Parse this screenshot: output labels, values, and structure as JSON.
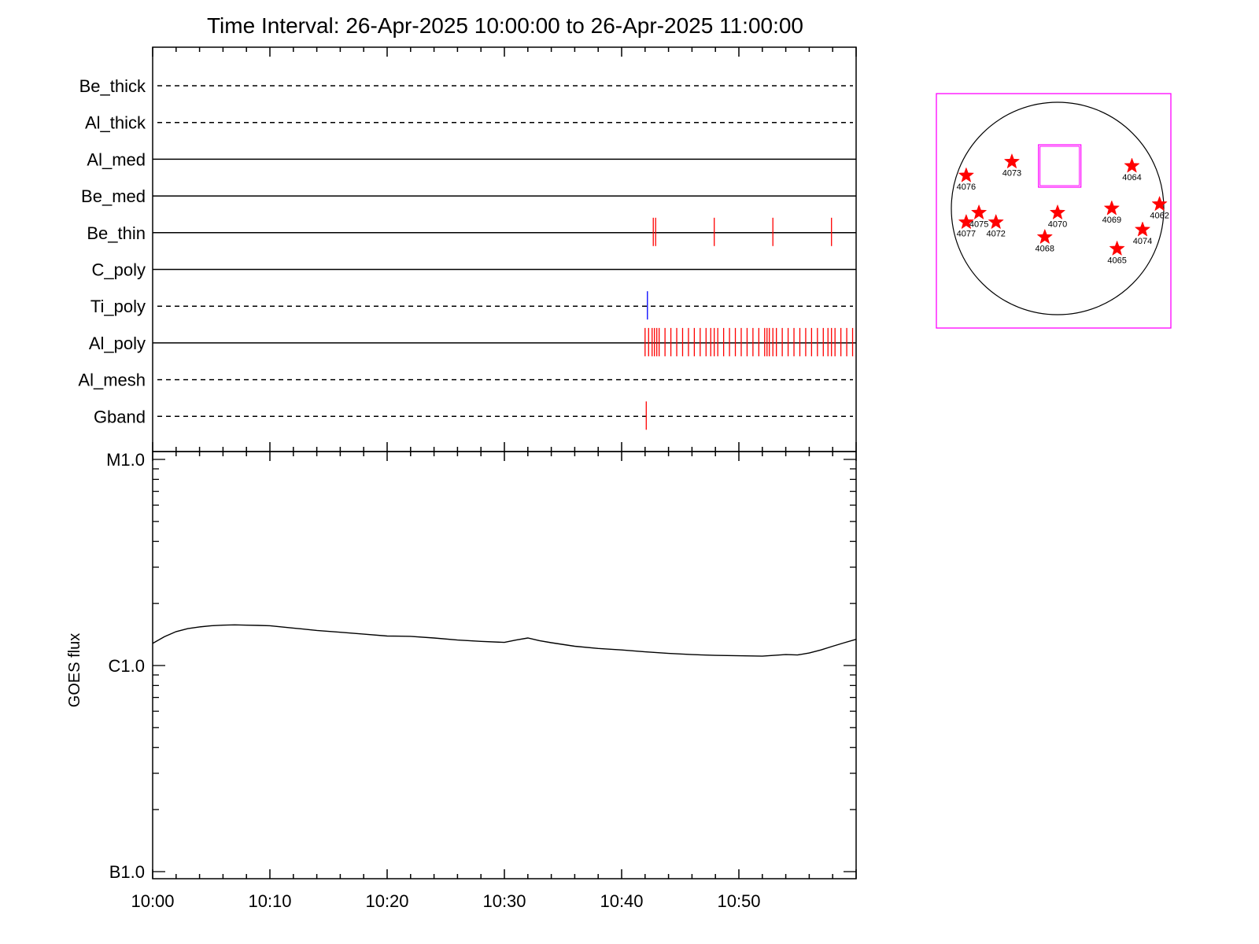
{
  "chart_data": [
    {
      "type": "timeline",
      "title": "Time Interval: 26-Apr-2025 10:00:00 to 26-Apr-2025 11:00:00",
      "x_range_minutes": [
        0,
        60
      ],
      "x_ticks": [
        "10:00",
        "10:10",
        "10:20",
        "10:30",
        "10:40",
        "10:50"
      ],
      "filters": [
        {
          "name": "Be_thick",
          "line": "dashed",
          "mark_color": "#ff0000",
          "marks_minutes": []
        },
        {
          "name": "Al_thick",
          "line": "dashed",
          "mark_color": "#ff0000",
          "marks_minutes": []
        },
        {
          "name": "Al_med",
          "line": "solid",
          "mark_color": "#ff0000",
          "marks_minutes": []
        },
        {
          "name": "Be_med",
          "line": "solid",
          "mark_color": "#ff0000",
          "marks_minutes": []
        },
        {
          "name": "Be_thin",
          "line": "solid",
          "mark_color": "#ff0000",
          "marks_minutes": [
            42.7,
            42.9,
            47.9,
            52.9,
            57.9
          ]
        },
        {
          "name": "C_poly",
          "line": "solid",
          "mark_color": "#ff0000",
          "marks_minutes": []
        },
        {
          "name": "Ti_poly",
          "line": "dashed",
          "mark_color": "#0000ff",
          "marks_minutes": [
            42.2
          ]
        },
        {
          "name": "Al_poly",
          "line": "solid",
          "mark_color": "#ff0000",
          "marks_minutes": [
            42.0,
            42.3,
            42.6,
            42.8,
            43.0,
            43.2,
            43.7,
            44.2,
            44.7,
            45.2,
            45.7,
            46.2,
            46.7,
            47.2,
            47.6,
            47.9,
            48.2,
            48.7,
            49.2,
            49.7,
            50.2,
            50.7,
            51.2,
            51.7,
            52.2,
            52.4,
            52.6,
            52.9,
            53.2,
            53.7,
            54.2,
            54.7,
            55.2,
            55.7,
            56.2,
            56.7,
            57.2,
            57.6,
            57.9,
            58.2,
            58.7,
            59.2,
            59.7
          ]
        },
        {
          "name": "Al_mesh",
          "line": "dashed",
          "mark_color": "#ff0000",
          "marks_minutes": []
        },
        {
          "name": "Gband",
          "line": "dashed",
          "mark_color": "#ff0000",
          "marks_minutes": [
            42.1
          ]
        }
      ]
    },
    {
      "type": "line",
      "ylabel": "GOES flux",
      "scale": "log",
      "x_range_minutes": [
        0,
        60
      ],
      "x_ticks": [
        "10:00",
        "10:10",
        "10:20",
        "10:30",
        "10:40",
        "10:50"
      ],
      "y_ticks": [
        {
          "label": "M1.0",
          "value": 1e-05
        },
        {
          "label": "C1.0",
          "value": 1e-06
        },
        {
          "label": "B1.0",
          "value": 1e-07
        }
      ],
      "ylim": [
        1e-07,
        1e-05
      ],
      "series": [
        {
          "color": "#000000",
          "x_minutes": [
            0,
            1,
            2,
            3,
            4,
            5,
            6,
            7,
            8,
            9,
            10,
            12,
            14,
            16,
            18,
            20,
            22,
            24,
            26,
            28,
            30,
            31,
            32,
            33,
            34,
            36,
            38,
            40,
            42,
            44,
            46,
            48,
            50,
            52,
            53,
            54,
            55,
            56,
            57,
            58,
            59,
            60
          ],
          "values": [
            1.28e-06,
            1.38e-06,
            1.46e-06,
            1.51e-06,
            1.54e-06,
            1.56e-06,
            1.57e-06,
            1.575e-06,
            1.57e-06,
            1.565e-06,
            1.56e-06,
            1.52e-06,
            1.48e-06,
            1.45e-06,
            1.42e-06,
            1.39e-06,
            1.385e-06,
            1.36e-06,
            1.33e-06,
            1.31e-06,
            1.295e-06,
            1.33e-06,
            1.36e-06,
            1.32e-06,
            1.29e-06,
            1.24e-06,
            1.21e-06,
            1.19e-06,
            1.165e-06,
            1.145e-06,
            1.13e-06,
            1.12e-06,
            1.115e-06,
            1.11e-06,
            1.12e-06,
            1.13e-06,
            1.125e-06,
            1.15e-06,
            1.19e-06,
            1.24e-06,
            1.29e-06,
            1.34e-06
          ]
        }
      ]
    },
    {
      "type": "scatter",
      "description_type": "solar-disk-map",
      "xlim": [
        -1,
        1
      ],
      "ylim": [
        -1,
        1
      ],
      "field_of_view": {
        "x": [
          -0.18,
          0.22
        ],
        "y": [
          0.2,
          0.6
        ]
      },
      "active_regions": [
        {
          "label": "4076",
          "x": -0.86,
          "y": 0.31
        },
        {
          "label": "4073",
          "x": -0.43,
          "y": 0.44
        },
        {
          "label": "4064",
          "x": 0.7,
          "y": 0.4
        },
        {
          "label": "4062",
          "x": 0.96,
          "y": 0.04
        },
        {
          "label": "4075",
          "x": -0.74,
          "y": -0.04
        },
        {
          "label": "4070",
          "x": 0.0,
          "y": -0.04
        },
        {
          "label": "4069",
          "x": 0.51,
          "y": 0.0
        },
        {
          "label": "4077",
          "x": -0.86,
          "y": -0.13
        },
        {
          "label": "4072",
          "x": -0.58,
          "y": -0.13
        },
        {
          "label": "4074",
          "x": 0.8,
          "y": -0.2
        },
        {
          "label": "4068",
          "x": -0.12,
          "y": -0.27
        },
        {
          "label": "4065",
          "x": 0.56,
          "y": -0.38
        }
      ]
    }
  ]
}
